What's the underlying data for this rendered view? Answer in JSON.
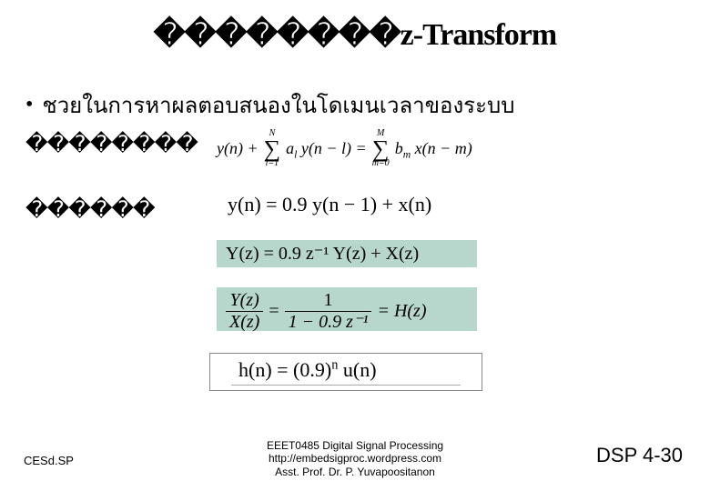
{
  "title": "��������z-Transform",
  "bullet": "ชวยในการหาผลตอบสนองในโดเมนเวลาของระบบ",
  "sub1": "��������",
  "sub2": "������",
  "colors": {
    "highlight_bg": "#b7d7cc",
    "box_border": "#888888",
    "text": "#000000",
    "background": "#ffffff"
  },
  "eq_sum": {
    "lhs": "y(n) +",
    "sigma1_upper": "N",
    "sigma1_lower": "l=1",
    "sigma1_body_a": "a",
    "sigma1_body_sub": "l",
    "sigma1_body_tail": " y(n − l) = ",
    "sigma2_upper": "M",
    "sigma2_lower": "m=0",
    "sigma2_body_b": "b",
    "sigma2_body_sub": "m",
    "sigma2_body_tail": " x(n − m)"
  },
  "eq_rec": "y(n) = 0.9 y(n − 1) + x(n)",
  "eq_yz": "Y(z) = 0.9 z⁻¹ Y(z) + X(z)",
  "eq_frac": {
    "num_left": "Y(z)",
    "den_left": "X(z)",
    "eq": " = ",
    "num_right": "1",
    "den_right": "1 − 0.9 z⁻¹",
    "tail": " = H(z)"
  },
  "eq_hn": {
    "pre": "h(n) = (0.9)",
    "sup": "n",
    "post": " u(n)"
  },
  "footer": {
    "left": "CESd.SP",
    "course": "EEET0485 Digital Signal Processing",
    "url": "http://embedsigproc.wordpress.com",
    "author": "Asst. Prof. Dr. P. Yuvapoositanon",
    "right": "DSP 4-30"
  },
  "typography": {
    "title_fontsize": 34,
    "bullet_fontsize": 24,
    "eq_fontsize_main": 22,
    "eq_fontsize_small": 18,
    "footer_fontsize": 12,
    "footer_right_fontsize": 22
  }
}
